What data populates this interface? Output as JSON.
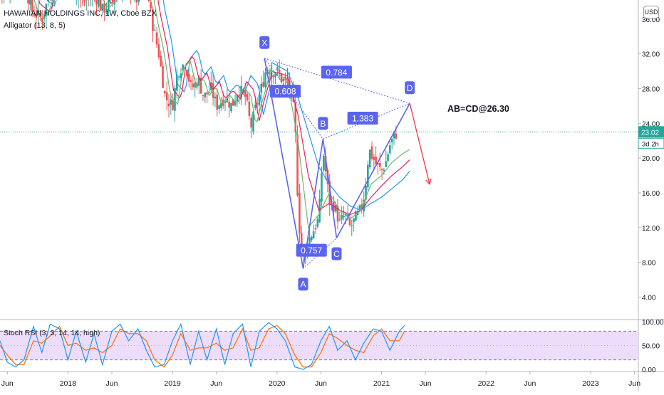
{
  "header": {
    "symbol_title": "HAWAIIAN HOLDINGS INC, 1W, Cboe BZX",
    "indicator_alligator": "Alligator (13, 8, 5)",
    "indicator_stoch": "Stoch RSI (3, 3, 14, 14, high)",
    "currency_badge": "USD"
  },
  "colors": {
    "up": "#26a69a",
    "down": "#ef5350",
    "alligator_jaw": "#2196f3",
    "alligator_teeth": "#e91e63",
    "alligator_lips": "#66bb6a",
    "harmonic_pattern": "#5a64f0",
    "target_arrow": "#f23645",
    "price_line": "#26a69a",
    "stoch_k": "#2196f3",
    "stoch_d": "#ff6d00",
    "stoch_band_fill": "#e8d5f9"
  },
  "chart_data": [
    {
      "type": "candlestick",
      "x_axis": {
        "labels": [
          "Jun",
          "2018",
          "Jun",
          "2019",
          "Jun",
          "2020",
          "Jun",
          "2021",
          "Jun",
          "2022",
          "Jun",
          "2023",
          "Jun"
        ],
        "label_dates": [
          2017.42,
          2018.0,
          2018.42,
          2019.0,
          2019.42,
          2020.0,
          2020.42,
          2021.0,
          2021.42,
          2022.0,
          2022.42,
          2023.0,
          2023.42
        ],
        "range": [
          2017.35,
          2023.45
        ]
      },
      "y_axis": {
        "range": [
          1.5,
          38.2
        ],
        "ticks": [
          4,
          8,
          12,
          16,
          20,
          24,
          28,
          32
        ],
        "tick_labels": [
          "4.00",
          "8.00",
          "12.00",
          "16.00",
          "20.00",
          "24.00",
          "28.00",
          "32.00"
        ],
        "partial_top_label": "36.00"
      },
      "price_path": [
        [
          2017.42,
          39.0
        ],
        [
          2017.55,
          42.0
        ],
        [
          2017.65,
          37.0
        ],
        [
          2017.75,
          36.0
        ],
        [
          2017.83,
          39.0
        ],
        [
          2017.92,
          40.0
        ],
        [
          2018.0,
          40.0
        ],
        [
          2018.08,
          39.0
        ],
        [
          2018.15,
          38.0
        ],
        [
          2018.25,
          39.0
        ],
        [
          2018.33,
          37.0
        ],
        [
          2018.42,
          38.0
        ],
        [
          2018.5,
          39.0
        ],
        [
          2018.58,
          40.0
        ],
        [
          2018.67,
          38.0
        ],
        [
          2018.75,
          40.0
        ],
        [
          2018.8,
          36.0
        ],
        [
          2018.87,
          32.0
        ],
        [
          2018.93,
          27.0
        ],
        [
          2019.0,
          26.0
        ],
        [
          2019.05,
          30.0
        ],
        [
          2019.12,
          31.0
        ],
        [
          2019.18,
          28.0
        ],
        [
          2019.25,
          29.0
        ],
        [
          2019.3,
          27.0
        ],
        [
          2019.37,
          28.0
        ],
        [
          2019.42,
          26.0
        ],
        [
          2019.5,
          27.0
        ],
        [
          2019.57,
          26.0
        ],
        [
          2019.63,
          28.0
        ],
        [
          2019.7,
          27.0
        ],
        [
          2019.75,
          23.5
        ],
        [
          2019.8,
          26.0
        ],
        [
          2019.85,
          28.0
        ],
        [
          2019.9,
          30.5
        ],
        [
          2019.95,
          30.0
        ],
        [
          2020.0,
          30.0
        ],
        [
          2020.05,
          29.0
        ],
        [
          2020.1,
          28.5
        ],
        [
          2020.15,
          27.0
        ],
        [
          2020.18,
          22.0
        ],
        [
          2020.2,
          15.0
        ],
        [
          2020.22,
          11.0
        ],
        [
          2020.24,
          9.0
        ],
        [
          2020.26,
          8.5
        ],
        [
          2020.28,
          10.0
        ],
        [
          2020.32,
          11.0
        ],
        [
          2020.36,
          12.0
        ],
        [
          2020.4,
          13.0
        ],
        [
          2020.44,
          21.0
        ],
        [
          2020.47,
          18.0
        ],
        [
          2020.5,
          15.0
        ],
        [
          2020.55,
          14.5
        ],
        [
          2020.6,
          12.5
        ],
        [
          2020.65,
          13.5
        ],
        [
          2020.7,
          12.0
        ],
        [
          2020.75,
          13.0
        ],
        [
          2020.8,
          14.0
        ],
        [
          2020.84,
          16.0
        ],
        [
          2020.88,
          21.0
        ],
        [
          2020.92,
          20.0
        ],
        [
          2020.96,
          19.0
        ],
        [
          2021.0,
          18.5
        ],
        [
          2021.04,
          19.5
        ],
        [
          2021.08,
          21.5
        ],
        [
          2021.12,
          22.5
        ],
        [
          2021.15,
          23.02
        ]
      ],
      "alligator_jaw": [
        [
          2019.95,
          31.0
        ],
        [
          2020.1,
          30.0
        ],
        [
          2020.2,
          27.0
        ],
        [
          2020.3,
          23.0
        ],
        [
          2020.4,
          19.0
        ],
        [
          2020.5,
          17.0
        ],
        [
          2020.6,
          15.5
        ],
        [
          2020.7,
          14.5
        ],
        [
          2020.8,
          14.0
        ],
        [
          2020.9,
          14.8
        ],
        [
          2021.0,
          15.5
        ],
        [
          2021.1,
          16.5
        ],
        [
          2021.2,
          17.5
        ],
        [
          2021.27,
          18.5
        ]
      ],
      "alligator_teeth": [
        [
          2019.95,
          30.0
        ],
        [
          2020.1,
          29.5
        ],
        [
          2020.2,
          25.0
        ],
        [
          2020.3,
          18.0
        ],
        [
          2020.4,
          14.0
        ],
        [
          2020.5,
          14.8
        ],
        [
          2020.6,
          14.0
        ],
        [
          2020.7,
          13.5
        ],
        [
          2020.8,
          14.0
        ],
        [
          2020.9,
          15.5
        ],
        [
          2021.0,
          16.8
        ],
        [
          2021.1,
          18.0
        ],
        [
          2021.2,
          19.0
        ],
        [
          2021.27,
          19.8
        ]
      ],
      "alligator_lips": [
        [
          2019.95,
          30.0
        ],
        [
          2020.1,
          29.0
        ],
        [
          2020.2,
          22.0
        ],
        [
          2020.3,
          12.0
        ],
        [
          2020.4,
          13.5
        ],
        [
          2020.5,
          16.0
        ],
        [
          2020.6,
          14.0
        ],
        [
          2020.7,
          13.0
        ],
        [
          2020.8,
          14.0
        ],
        [
          2020.9,
          17.0
        ],
        [
          2021.0,
          18.0
        ],
        [
          2021.1,
          19.5
        ],
        [
          2021.2,
          20.5
        ],
        [
          2021.27,
          21.0
        ]
      ],
      "harmonic": {
        "points": [
          {
            "label": "X",
            "x": 2019.88,
            "y": 31.5
          },
          {
            "label": "A",
            "x": 2020.25,
            "y": 7.3
          },
          {
            "label": "B",
            "x": 2020.44,
            "y": 22.2
          },
          {
            "label": "C",
            "x": 2020.57,
            "y": 10.8
          },
          {
            "label": "D",
            "x": 2021.27,
            "y": 26.3
          }
        ],
        "ratios": [
          {
            "label": "0.784",
            "x": 2020.57,
            "y": 29.9
          },
          {
            "label": "0.608",
            "x": 2020.08,
            "y": 27.7
          },
          {
            "label": "1.383",
            "x": 2020.82,
            "y": 24.6
          },
          {
            "label": "0.757",
            "x": 2020.33,
            "y": 9.4
          }
        ],
        "annotation": "AB=CD@26.30",
        "target_arrow": {
          "from": [
            2021.27,
            26.3
          ],
          "to": [
            2021.46,
            17.0
          ]
        }
      },
      "last_price": "23.02",
      "countdown": "3d 2h"
    },
    {
      "type": "line",
      "name": "Stoch RSI (3, 3, 14, 14, high)",
      "y_axis": {
        "range": [
          -3,
          103
        ],
        "ticks": [
          0,
          50,
          100
        ],
        "tick_labels": [
          "0.00",
          "50.00",
          "100.00"
        ]
      },
      "band": [
        20,
        80
      ],
      "k_path": [
        [
          2017.35,
          60
        ],
        [
          2017.42,
          15
        ],
        [
          2017.5,
          5
        ],
        [
          2017.58,
          20
        ],
        [
          2017.67,
          90
        ],
        [
          2017.75,
          35
        ],
        [
          2017.83,
          95
        ],
        [
          2017.92,
          85
        ],
        [
          2018.0,
          20
        ],
        [
          2018.08,
          80
        ],
        [
          2018.17,
          15
        ],
        [
          2018.25,
          75
        ],
        [
          2018.33,
          10
        ],
        [
          2018.42,
          80
        ],
        [
          2018.5,
          95
        ],
        [
          2018.58,
          60
        ],
        [
          2018.67,
          85
        ],
        [
          2018.75,
          40
        ],
        [
          2018.83,
          5
        ],
        [
          2018.92,
          10
        ],
        [
          2019.0,
          60
        ],
        [
          2019.08,
          95
        ],
        [
          2019.17,
          10
        ],
        [
          2019.25,
          80
        ],
        [
          2019.33,
          20
        ],
        [
          2019.42,
          85
        ],
        [
          2019.5,
          10
        ],
        [
          2019.58,
          75
        ],
        [
          2019.67,
          95
        ],
        [
          2019.75,
          5
        ],
        [
          2019.83,
          80
        ],
        [
          2019.92,
          98
        ],
        [
          2020.0,
          85
        ],
        [
          2020.08,
          60
        ],
        [
          2020.17,
          5
        ],
        [
          2020.25,
          0
        ],
        [
          2020.33,
          10
        ],
        [
          2020.42,
          60
        ],
        [
          2020.5,
          90
        ],
        [
          2020.58,
          40
        ],
        [
          2020.67,
          60
        ],
        [
          2020.75,
          20
        ],
        [
          2020.83,
          55
        ],
        [
          2020.92,
          85
        ],
        [
          2021.0,
          80
        ],
        [
          2021.08,
          40
        ],
        [
          2021.17,
          80
        ],
        [
          2021.22,
          92
        ]
      ],
      "d_path": [
        [
          2017.35,
          50
        ],
        [
          2017.42,
          30
        ],
        [
          2017.5,
          10
        ],
        [
          2017.58,
          10
        ],
        [
          2017.67,
          60
        ],
        [
          2017.75,
          55
        ],
        [
          2017.83,
          70
        ],
        [
          2017.92,
          90
        ],
        [
          2018.0,
          50
        ],
        [
          2018.08,
          55
        ],
        [
          2018.17,
          40
        ],
        [
          2018.25,
          45
        ],
        [
          2018.33,
          35
        ],
        [
          2018.42,
          50
        ],
        [
          2018.5,
          85
        ],
        [
          2018.58,
          75
        ],
        [
          2018.67,
          75
        ],
        [
          2018.75,
          60
        ],
        [
          2018.83,
          20
        ],
        [
          2018.92,
          5
        ],
        [
          2019.0,
          30
        ],
        [
          2019.08,
          75
        ],
        [
          2019.17,
          40
        ],
        [
          2019.25,
          45
        ],
        [
          2019.33,
          45
        ],
        [
          2019.42,
          55
        ],
        [
          2019.5,
          40
        ],
        [
          2019.58,
          45
        ],
        [
          2019.67,
          85
        ],
        [
          2019.75,
          40
        ],
        [
          2019.83,
          45
        ],
        [
          2019.92,
          85
        ],
        [
          2020.0,
          92
        ],
        [
          2020.08,
          75
        ],
        [
          2020.17,
          30
        ],
        [
          2020.25,
          5
        ],
        [
          2020.33,
          5
        ],
        [
          2020.42,
          35
        ],
        [
          2020.5,
          75
        ],
        [
          2020.58,
          65
        ],
        [
          2020.67,
          50
        ],
        [
          2020.75,
          40
        ],
        [
          2020.83,
          35
        ],
        [
          2020.92,
          70
        ],
        [
          2021.0,
          85
        ],
        [
          2021.08,
          60
        ],
        [
          2021.17,
          60
        ],
        [
          2021.22,
          80
        ]
      ]
    }
  ]
}
